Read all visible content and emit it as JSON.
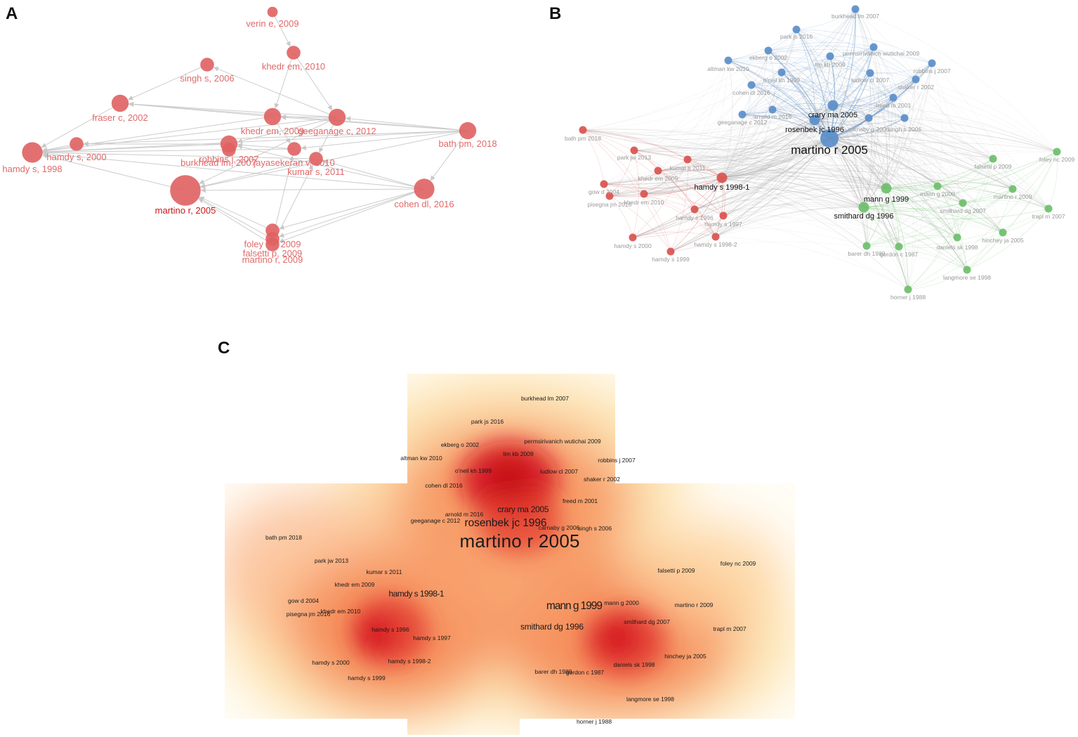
{
  "panels": {
    "a": {
      "label": "A",
      "nodes": [
        {
          "id": "verin",
          "text": "verin e, 2009",
          "w": 1
        },
        {
          "id": "khedr2010",
          "text": "khedr em, 2010",
          "w": 2
        },
        {
          "id": "singh",
          "text": "singh s, 2006",
          "w": 2
        },
        {
          "id": "fraser",
          "text": "fraser c, 2002",
          "w": 3
        },
        {
          "id": "khedr2009",
          "text": "khedr em, 2009",
          "w": 3
        },
        {
          "id": "geeganage",
          "text": "geeganage c, 2012",
          "w": 3
        },
        {
          "id": "bath",
          "text": "bath pm, 2018",
          "w": 3
        },
        {
          "id": "hamdy2000",
          "text": "hamdy s, 2000",
          "w": 2
        },
        {
          "id": "hamdy1998",
          "text": "hamdy s, 1998",
          "w": 4
        },
        {
          "id": "robbins",
          "text": "robbins j, 2007",
          "w": 3
        },
        {
          "id": "burkhead",
          "text": "burkhead lm, 2007",
          "w": 2
        },
        {
          "id": "jayasekeran",
          "text": "jayasekeran v, 2010",
          "w": 2
        },
        {
          "id": "kumar",
          "text": "kumar s, 2011",
          "w": 2
        },
        {
          "id": "martino2005",
          "text": "martino r, 2005",
          "w": 7
        },
        {
          "id": "cohen",
          "text": "cohen dl, 2016",
          "w": 4
        },
        {
          "id": "foley",
          "text": "foley nc, 2009",
          "w": 2
        },
        {
          "id": "falsetti",
          "text": "falsetti p, 2009",
          "w": 2
        },
        {
          "id": "martino2009",
          "text": "martino r, 2009",
          "w": 2
        }
      ],
      "edges": [
        [
          "verin",
          "khedr2010"
        ],
        [
          "khedr2010",
          "khedr2009"
        ],
        [
          "khedr2010",
          "geeganage"
        ],
        [
          "singh",
          "fraser"
        ],
        [
          "geeganage",
          "singh"
        ],
        [
          "geeganage",
          "fraser"
        ],
        [
          "geeganage",
          "khedr2009"
        ],
        [
          "geeganage",
          "robbins"
        ],
        [
          "geeganage",
          "hamdy1998"
        ],
        [
          "geeganage",
          "martino2005"
        ],
        [
          "geeganage",
          "kumar"
        ],
        [
          "bath",
          "fraser"
        ],
        [
          "bath",
          "hamdy1998"
        ],
        [
          "bath",
          "khedr2009"
        ],
        [
          "bath",
          "geeganage"
        ],
        [
          "bath",
          "martino2005"
        ],
        [
          "bath",
          "cohen"
        ],
        [
          "bath",
          "hamdy2000"
        ],
        [
          "bath",
          "jayasekeran"
        ],
        [
          "khedr2009",
          "fraser"
        ],
        [
          "khedr2009",
          "hamdy1998"
        ],
        [
          "khedr2009",
          "jayasekeran"
        ],
        [
          "fraser",
          "hamdy1998"
        ],
        [
          "hamdy2000",
          "hamdy1998"
        ],
        [
          "robbins",
          "hamdy1998"
        ],
        [
          "robbins",
          "hamdy2000"
        ],
        [
          "jayasekeran",
          "hamdy1998"
        ],
        [
          "jayasekeran",
          "robbins"
        ],
        [
          "kumar",
          "martino2005"
        ],
        [
          "kumar",
          "hamdy1998"
        ],
        [
          "cohen",
          "martino2005"
        ],
        [
          "cohen",
          "hamdy1998"
        ],
        [
          "cohen",
          "robbins"
        ],
        [
          "cohen",
          "kumar"
        ],
        [
          "cohen",
          "foley"
        ],
        [
          "cohen",
          "falsetti"
        ],
        [
          "cohen",
          "martino2009"
        ],
        [
          "martino2005",
          "hamdy1998"
        ],
        [
          "foley",
          "martino2005"
        ],
        [
          "falsetti",
          "martino2005"
        ],
        [
          "martino2009",
          "martino2005"
        ],
        [
          "martino2009",
          "kumar"
        ],
        [
          "falsetti",
          "jayasekeran"
        ]
      ]
    },
    "b": {
      "label": "B",
      "clusters": {
        "red": "#d9534f",
        "blue": "#5b8ec9",
        "green": "#6cbf6a"
      },
      "nodes": [
        {
          "id": "burkhead",
          "text": "burkhead lm 2007",
          "c": "blue",
          "w": 1
        },
        {
          "id": "parkjs",
          "text": "park js 2016",
          "c": "blue",
          "w": 1
        },
        {
          "id": "ekberg",
          "text": "ekberg o 2002",
          "c": "blue",
          "w": 1
        },
        {
          "id": "perm",
          "text": "permsirivanich wutichai 2009",
          "c": "blue",
          "w": 1
        },
        {
          "id": "altman",
          "text": "altman kw 2010",
          "c": "blue",
          "w": 1
        },
        {
          "id": "limkb",
          "text": "lim kb 2009",
          "c": "blue",
          "w": 1
        },
        {
          "id": "robbins",
          "text": "robbins j 2007",
          "c": "blue",
          "w": 1
        },
        {
          "id": "oneil",
          "text": "o'neil kh 1999",
          "c": "blue",
          "w": 1
        },
        {
          "id": "ludlow",
          "text": "ludlow cl 2007",
          "c": "blue",
          "w": 1
        },
        {
          "id": "shaker",
          "text": "shaker r 2002",
          "c": "blue",
          "w": 1
        },
        {
          "id": "cohen",
          "text": "cohen dl 2016",
          "c": "blue",
          "w": 1
        },
        {
          "id": "freed",
          "text": "freed m 2001",
          "c": "blue",
          "w": 1
        },
        {
          "id": "arnold",
          "text": "arnold m 2016",
          "c": "blue",
          "w": 1
        },
        {
          "id": "crary",
          "text": "crary ma 2005",
          "c": "blue",
          "w": 2
        },
        {
          "id": "geeganage",
          "text": "geeganage c 2012",
          "c": "blue",
          "w": 1
        },
        {
          "id": "carnaby",
          "text": "carnaby g 2006",
          "c": "blue",
          "w": 1
        },
        {
          "id": "singh",
          "text": "singh s 2006",
          "c": "blue",
          "w": 1
        },
        {
          "id": "rosenbek",
          "text": "rosenbek jc 1996",
          "c": "blue",
          "w": 2
        },
        {
          "id": "martino",
          "text": "martino r 2005",
          "c": "blue",
          "w": 4
        },
        {
          "id": "bath",
          "text": "bath pm 2018",
          "c": "red",
          "w": 1
        },
        {
          "id": "parkjw",
          "text": "park jw 2013",
          "c": "red",
          "w": 1
        },
        {
          "id": "kumar",
          "text": "kumar s 2011",
          "c": "red",
          "w": 1
        },
        {
          "id": "khedr2009",
          "text": "khedr em 2009",
          "c": "red",
          "w": 1
        },
        {
          "id": "hamdy1998_1",
          "text": "hamdy s 1998-1",
          "c": "red",
          "w": 2
        },
        {
          "id": "gow",
          "text": "gow d 2004",
          "c": "red",
          "w": 1
        },
        {
          "id": "pisegna",
          "text": "pisegna jm 2016",
          "c": "red",
          "w": 1
        },
        {
          "id": "khedr2010",
          "text": "khedr em 2010",
          "c": "red",
          "w": 1
        },
        {
          "id": "hamdy1996",
          "text": "hamdy s 1996",
          "c": "red",
          "w": 1
        },
        {
          "id": "hamdy1997",
          "text": "hamdy s 1997",
          "c": "red",
          "w": 1
        },
        {
          "id": "hamdy2000",
          "text": "hamdy s 2000",
          "c": "red",
          "w": 1
        },
        {
          "id": "hamdy1998_2",
          "text": "hamdy s 1998-2",
          "c": "red",
          "w": 1
        },
        {
          "id": "hamdy1999",
          "text": "hamdy s 1999",
          "c": "red",
          "w": 1
        },
        {
          "id": "falsetti",
          "text": "falsetti p 2009",
          "c": "green",
          "w": 1
        },
        {
          "id": "foley",
          "text": "foley nc 2009",
          "c": "green",
          "w": 1
        },
        {
          "id": "manng2000",
          "text": "mann g 2000",
          "c": "green",
          "w": 1
        },
        {
          "id": "manng1999",
          "text": "mann g 1999",
          "c": "green",
          "w": 2
        },
        {
          "id": "martino2009",
          "text": "martino r 2009",
          "c": "green",
          "w": 1
        },
        {
          "id": "smithard2007",
          "text": "smithard dg 2007",
          "c": "green",
          "w": 1
        },
        {
          "id": "trapl",
          "text": "trapl m 2007",
          "c": "green",
          "w": 1
        },
        {
          "id": "smithard1996",
          "text": "smithard dg 1996",
          "c": "green",
          "w": 2
        },
        {
          "id": "hinchey",
          "text": "hinchey ja 2005",
          "c": "green",
          "w": 1
        },
        {
          "id": "barer",
          "text": "barer dh 1989",
          "c": "green",
          "w": 1
        },
        {
          "id": "gordon",
          "text": "gordon c 1987",
          "c": "green",
          "w": 1
        },
        {
          "id": "daniels",
          "text": "daniels sk 1998",
          "c": "green",
          "w": 1
        },
        {
          "id": "langmore",
          "text": "langmore se 1998",
          "c": "green",
          "w": 1
        },
        {
          "id": "horner",
          "text": "horner j 1988",
          "c": "green",
          "w": 1
        }
      ]
    },
    "c": {
      "label": "C",
      "labels": [
        {
          "id": "burkhead",
          "text": "burkhead lm 2007",
          "w": 1
        },
        {
          "id": "parkjs",
          "text": "park js 2016",
          "w": 1
        },
        {
          "id": "ekberg",
          "text": "ekberg o 2002",
          "w": 1
        },
        {
          "id": "perm",
          "text": "permsirivanich wutichai 2009",
          "w": 1
        },
        {
          "id": "altman",
          "text": "altman kw 2010",
          "w": 1
        },
        {
          "id": "limkb",
          "text": "lim kb 2009",
          "w": 1
        },
        {
          "id": "robbins",
          "text": "robbins j 2007",
          "w": 1
        },
        {
          "id": "oneil",
          "text": "o'neil kh 1999",
          "w": 1
        },
        {
          "id": "ludlow",
          "text": "ludlow cl 2007",
          "w": 1
        },
        {
          "id": "shaker",
          "text": "shaker r 2002",
          "w": 1
        },
        {
          "id": "cohen",
          "text": "cohen dl 2016",
          "w": 1
        },
        {
          "id": "freed",
          "text": "freed m 2001",
          "w": 1
        },
        {
          "id": "crary",
          "text": "crary ma 2005",
          "w": 2
        },
        {
          "id": "arnold",
          "text": "arnold m 2016",
          "w": 1
        },
        {
          "id": "geeganage",
          "text": "geeganage c 2012",
          "w": 1
        },
        {
          "id": "rosenbek",
          "text": "rosenbek jc 1996",
          "w": 3
        },
        {
          "id": "carnaby",
          "text": "carnaby g 2006",
          "w": 1
        },
        {
          "id": "singh",
          "text": "singh s 2006",
          "w": 1
        },
        {
          "id": "bath",
          "text": "bath pm 2018",
          "w": 1
        },
        {
          "id": "martino",
          "text": "martino r 2005",
          "w": 5
        },
        {
          "id": "parkjw",
          "text": "park jw 2013",
          "w": 1
        },
        {
          "id": "kumar",
          "text": "kumar s 2011",
          "w": 1
        },
        {
          "id": "falsetti",
          "text": "falsetti p 2009",
          "w": 1
        },
        {
          "id": "foley",
          "text": "foley nc 2009",
          "w": 1
        },
        {
          "id": "khedr2009",
          "text": "khedr em 2009",
          "w": 1
        },
        {
          "id": "hamdy1998_1",
          "text": "hamdy s 1998-1",
          "w": 2
        },
        {
          "id": "gow",
          "text": "gow d 2004",
          "w": 1
        },
        {
          "id": "manng1999",
          "text": "mann g 1999",
          "w": 3
        },
        {
          "id": "manng2000",
          "text": "mann g 2000",
          "w": 1
        },
        {
          "id": "martino2009",
          "text": "martino r 2009",
          "w": 1
        },
        {
          "id": "khedr2010",
          "text": "khedr em 2010",
          "w": 1
        },
        {
          "id": "pisegna",
          "text": "pisegna jm 2016",
          "w": 1
        },
        {
          "id": "smithard2007",
          "text": "smithard dg 2007",
          "w": 1
        },
        {
          "id": "smithard1996",
          "text": "smithard dg 1996",
          "w": 2
        },
        {
          "id": "hamdy1996",
          "text": "hamdy s 1996",
          "w": 1
        },
        {
          "id": "trapl",
          "text": "trapl m 2007",
          "w": 1
        },
        {
          "id": "hamdy1997",
          "text": "hamdy s 1997",
          "w": 1
        },
        {
          "id": "hinchey",
          "text": "hinchey ja 2005",
          "w": 1
        },
        {
          "id": "hamdy2000",
          "text": "hamdy s 2000",
          "w": 1
        },
        {
          "id": "hamdy1998_2",
          "text": "hamdy s 1998-2",
          "w": 1
        },
        {
          "id": "daniels",
          "text": "daniels sk 1998",
          "w": 1
        },
        {
          "id": "barer",
          "text": "barer dh 1989",
          "w": 1
        },
        {
          "id": "gordon",
          "text": "gordon c 1987",
          "w": 1
        },
        {
          "id": "hamdy1999",
          "text": "hamdy s 1999",
          "w": 1
        },
        {
          "id": "langmore",
          "text": "langmore se 1998",
          "w": 1
        },
        {
          "id": "horner",
          "text": "horner j 1988",
          "w": 1
        }
      ]
    }
  },
  "colors": {
    "panel_a_node": "#e06060",
    "panel_a_label": "#e06a6a",
    "panel_a_label_strong": "#c81818",
    "edge": "#cccccc",
    "density_hot": "#d4101e",
    "density_mid": "#f58a55",
    "density_cool": "#fde3b0"
  }
}
